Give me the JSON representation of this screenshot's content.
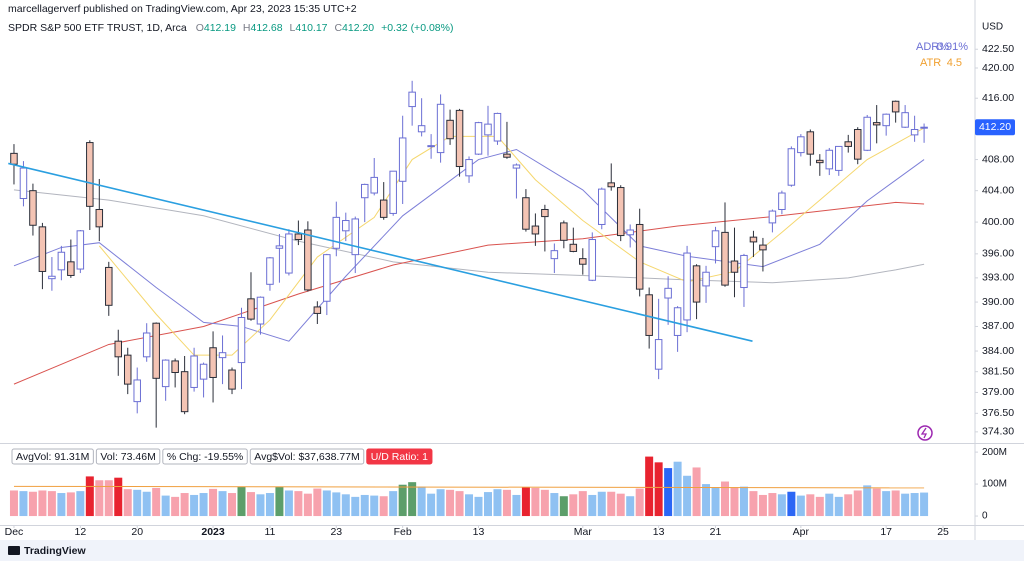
{
  "header": {
    "publisher": "marcellagerverf published on TradingView.com, Apr 23, 2023 15:35 UTC+2",
    "symbol": "SPDR S&P 500 ETF TRUST, 1D, Arca",
    "ohlc": [
      {
        "label": "O",
        "value": "412.19"
      },
      {
        "label": "H",
        "value": "412.68"
      },
      {
        "label": "L",
        "value": "410.17"
      },
      {
        "label": "C",
        "value": "412.20"
      }
    ],
    "change": "+0.32 (+0.08%)",
    "currency": "USD"
  },
  "indicators": {
    "adr_label": "ADR%",
    "adr_value": "0.91%",
    "atr_label": "ATR",
    "atr_value": "4.5"
  },
  "status_bar": [
    "AvgVol: 91.31M",
    "Vol: 73.46M",
    "% Chg: -19.55%",
    "Avg$Vol: $37,638.77M",
    "U/D Ratio: 1"
  ],
  "footer": {
    "brand": "TradingView"
  },
  "chart_data": {
    "type": "candlestick",
    "open": [
      408.8,
      403.0,
      404.0,
      399.4,
      392.9,
      394.0,
      395.0,
      394.1,
      410.2,
      401.6,
      394.3,
      385.2,
      383.5,
      377.9,
      383.3,
      387.4,
      379.7,
      382.8,
      381.5,
      379.6,
      380.6,
      384.4,
      383.2,
      381.7,
      382.6,
      390.4,
      387.3,
      392.2,
      396.7,
      393.6,
      398.5,
      399.0,
      389.4,
      390.1,
      396.7,
      398.9,
      395.9,
      403.1,
      403.7,
      402.8,
      401.1,
      405.2,
      414.9,
      411.6,
      409.8,
      408.9,
      413.1,
      414.4,
      405.9,
      408.7,
      411.2,
      410.4,
      408.7,
      406.9,
      403.1,
      399.5,
      401.6,
      395.4,
      399.9,
      397.2,
      395.4,
      392.7,
      399.7,
      405.0,
      404.4,
      398.4,
      399.7,
      390.9,
      381.8,
      390.5,
      385.9,
      387.8,
      394.5,
      392.0,
      396.9,
      398.7,
      395.1,
      391.8,
      398.1,
      397.1,
      399.9,
      401.6,
      404.7,
      408.9,
      411.6,
      407.9,
      406.8,
      406.6,
      410.3,
      411.9,
      409.2,
      412.8,
      412.4,
      415.6,
      412.2,
      411.2,
      412.19
    ],
    "high": [
      410.0,
      407.8,
      404.9,
      399.9,
      395.6,
      397.0,
      397.8,
      399.0,
      410.5,
      405.5,
      395.0,
      386.6,
      384.4,
      382.0,
      387.4,
      387.5,
      383.0,
      383.1,
      383.4,
      384.4,
      382.6,
      386.4,
      385.9,
      382.0,
      389.3,
      393.7,
      390.7,
      395.6,
      398.5,
      399.1,
      400.2,
      400.1,
      390.1,
      396.0,
      402.6,
      401.2,
      400.7,
      404.9,
      408.2,
      405.1,
      406.5,
      413.7,
      418.3,
      416.0,
      411.3,
      416.5,
      414.5,
      414.6,
      408.4,
      412.9,
      415.0,
      414.1,
      412.9,
      407.5,
      404.2,
      401.1,
      402.2,
      397.3,
      400.2,
      399.3,
      396.7,
      398.7,
      404.4,
      407.5,
      404.7,
      399.7,
      401.7,
      391.8,
      390.4,
      393.2,
      389.5,
      397.0,
      394.7,
      394.5,
      399.4,
      402.5,
      399.3,
      396.0,
      398.9,
      398.0,
      401.6,
      404.0,
      409.7,
      411.3,
      411.9,
      408.7,
      409.5,
      409.7,
      411.2,
      412.2,
      413.8,
      415.1,
      414.0,
      415.7,
      415.1,
      413.7,
      412.68
    ],
    "low": [
      404.8,
      402.0,
      398.3,
      391.6,
      391.4,
      392.7,
      393.0,
      393.6,
      399.0,
      397.6,
      388.3,
      381.0,
      378.8,
      376.5,
      382.7,
      374.8,
      378.0,
      379.6,
      376.4,
      379.1,
      378.4,
      377.8,
      380.0,
      378.8,
      379.4,
      387.7,
      386.0,
      391.4,
      392.4,
      393.3,
      397.1,
      391.3,
      387.3,
      388.4,
      395.7,
      397.6,
      393.6,
      400.0,
      403.4,
      400.3,
      400.8,
      402.3,
      412.4,
      411.0,
      408.1,
      407.6,
      409.9,
      405.8,
      405.0,
      408.6,
      408.5,
      409.9,
      408.1,
      403.0,
      398.8,
      397.0,
      396.3,
      393.6,
      396.7,
      396.2,
      393.4,
      392.6,
      399.1,
      404.0,
      397.6,
      396.8,
      390.7,
      384.3,
      380.6,
      387.2,
      383.9,
      386.3,
      387.9,
      389.9,
      394.8,
      391.9,
      390.6,
      389.4,
      395.6,
      393.8,
      398.7,
      401.0,
      404.5,
      408.4,
      407.2,
      405.9,
      406.0,
      405.9,
      408.9,
      407.4,
      409.1,
      410.1,
      411.1,
      412.8,
      412.1,
      410.3,
      410.17
    ],
    "close": [
      407.4,
      406.9,
      399.6,
      393.8,
      393.2,
      396.2,
      393.3,
      398.9,
      402.0,
      399.4,
      389.6,
      383.3,
      380.0,
      380.5,
      386.2,
      380.7,
      382.9,
      381.4,
      376.7,
      383.4,
      382.4,
      380.8,
      383.8,
      379.4,
      388.1,
      387.9,
      390.6,
      395.5,
      397.0,
      398.5,
      397.8,
      391.5,
      388.6,
      395.9,
      400.6,
      400.2,
      400.4,
      404.8,
      405.7,
      400.6,
      406.5,
      410.8,
      416.8,
      412.4,
      409.8,
      415.2,
      410.7,
      407.1,
      408.0,
      412.8,
      412.6,
      414.0,
      408.3,
      407.3,
      399.1,
      398.5,
      400.7,
      396.4,
      397.7,
      396.3,
      394.7,
      397.8,
      404.2,
      404.5,
      398.3,
      399.0,
      391.6,
      385.9,
      385.4,
      391.7,
      389.3,
      396.1,
      390.0,
      393.7,
      398.9,
      392.1,
      393.7,
      395.8,
      397.5,
      396.5,
      401.4,
      403.7,
      409.4,
      410.95,
      408.7,
      407.6,
      409.2,
      409.7,
      409.7,
      408.05,
      413.5,
      412.5,
      413.9,
      414.2,
      414.1,
      411.9,
      412.2
    ],
    "up_color": "#6b6fd4",
    "down_color": "#f4c4b4",
    "log": true,
    "grid": false,
    "xlim": [
      -0.63,
      101.37
    ],
    "ylim": [
      373.1,
      426.7
    ],
    "yticks": [
      {
        "value": 422.5,
        "label": "422.50"
      },
      {
        "value": 420,
        "label": "420.00"
      },
      {
        "value": 416,
        "label": "416.00"
      },
      {
        "value": 408,
        "label": "408.00"
      },
      {
        "value": 404,
        "label": "404.00"
      },
      {
        "value": 400,
        "label": "400.00"
      },
      {
        "value": 396,
        "label": "396.00"
      },
      {
        "value": 393,
        "label": "393.00"
      },
      {
        "value": 390,
        "label": "390.00"
      },
      {
        "value": 387,
        "label": "387.00"
      },
      {
        "value": 384,
        "label": "384.00"
      },
      {
        "value": 381.5,
        "label": "381.50"
      },
      {
        "value": 379,
        "label": "379.00"
      },
      {
        "value": 376.5,
        "label": "376.50"
      },
      {
        "value": 374.3,
        "label": "374.30"
      }
    ],
    "price_label": {
      "value": 412.2,
      "label": "412.20",
      "color": "#2962ff"
    },
    "xticks": [
      {
        "value": 0,
        "label": "Dec"
      },
      {
        "value": 7,
        "label": "12"
      },
      {
        "value": 13,
        "label": "20"
      },
      {
        "value": 21,
        "label": "2023"
      },
      {
        "value": 27,
        "label": "11"
      },
      {
        "value": 34,
        "label": "23"
      },
      {
        "value": 41,
        "label": "Feb"
      },
      {
        "value": 49,
        "label": "13"
      },
      {
        "value": 60,
        "label": "Mar"
      },
      {
        "value": 68,
        "label": "13"
      },
      {
        "value": 74,
        "label": "21"
      },
      {
        "value": 83,
        "label": "Apr"
      },
      {
        "value": 92,
        "label": "17"
      },
      {
        "value": 98,
        "label": "25"
      }
    ],
    "moving_averages": [
      {
        "color": "#b2b5be",
        "x": [
          0,
          10,
          20,
          30,
          40,
          50,
          60,
          70,
          80,
          88,
          93,
          96
        ],
        "values": [
          404.1,
          402.8,
          400.8,
          397.6,
          395.0,
          393.7,
          393.3,
          392.8,
          392.4,
          393.0,
          394.0,
          394.7
        ]
      },
      {
        "color": "#d9534f",
        "x": [
          0,
          10,
          20,
          30,
          40,
          50,
          60,
          70,
          80,
          88,
          93,
          96
        ],
        "values": [
          380.0,
          384.8,
          387.0,
          391.0,
          394.6,
          397.1,
          397.9,
          399.5,
          400.7,
          401.8,
          402.5,
          402.3
        ]
      },
      {
        "color": "#7d7fd8",
        "x": [
          0,
          5,
          9,
          15,
          20,
          24,
          29,
          35,
          41,
          49,
          53,
          60,
          66,
          71,
          79,
          85,
          90,
          96
        ],
        "values": [
          394.5,
          396.8,
          397.4,
          391.8,
          387.5,
          387.0,
          385.2,
          393.2,
          400.8,
          408.0,
          409.3,
          404.1,
          397.0,
          395.7,
          394.4,
          397.2,
          402.7,
          408.0
        ]
      },
      {
        "color": "#f5d76e",
        "x": [
          9,
          15,
          19,
          23,
          27,
          32,
          38,
          42,
          46,
          51,
          55,
          60,
          66,
          71,
          76,
          81,
          85,
          90,
          96
        ],
        "values": [
          397.0,
          388.5,
          383.5,
          383.5,
          387.8,
          395.6,
          400.6,
          408.0,
          411.0,
          411.0,
          405.4,
          400.2,
          395.0,
          392.5,
          393.8,
          398.7,
          402.8,
          408.0,
          412.1
        ]
      }
    ],
    "trendline": {
      "color": "#2a9fe0",
      "x": [
        -0.6,
        77.9
      ],
      "values": [
        407.5,
        385.2
      ]
    },
    "volume": {
      "values": [
        80,
        78,
        76,
        80,
        78,
        72,
        74,
        78,
        124,
        112,
        112,
        120,
        84,
        82,
        76,
        88,
        64,
        60,
        72,
        66,
        72,
        85,
        78,
        72,
        92,
        75,
        68,
        72,
        92,
        80,
        78,
        70,
        86,
        80,
        74,
        68,
        60,
        66,
        64,
        62,
        78,
        98,
        106,
        92,
        70,
        84,
        82,
        78,
        68,
        60,
        75,
        84,
        82,
        66,
        90,
        88,
        82,
        72,
        62,
        68,
        78,
        66,
        76,
        76,
        70,
        62,
        86,
        186,
        168,
        150,
        170,
        126,
        152,
        100,
        90,
        108,
        90,
        92,
        78,
        66,
        72,
        68,
        76,
        64,
        68,
        60,
        70,
        60,
        68,
        80,
        96,
        86,
        78,
        80,
        70,
        72,
        73.46
      ],
      "colors": [
        "#f7a2ad",
        "#8fc1f2",
        "#f7a2ad",
        "#f7a2ad",
        "#f7a2ad",
        "#8fc1f2",
        "#f7a2ad",
        "#8fc1f2",
        "#e8232f",
        "#f7a2ad",
        "#f7a2ad",
        "#e8232f",
        "#f7a2ad",
        "#8fc1f2",
        "#8fc1f2",
        "#f7a2ad",
        "#8fc1f2",
        "#f7a2ad",
        "#f7a2ad",
        "#8fc1f2",
        "#8fc1f2",
        "#f7a2ad",
        "#8fc1f2",
        "#f7a2ad",
        "#5c9e6a",
        "#f7a2ad",
        "#8fc1f2",
        "#8fc1f2",
        "#5c9e6a",
        "#8fc1f2",
        "#f7a2ad",
        "#f7a2ad",
        "#f7a2ad",
        "#8fc1f2",
        "#8fc1f2",
        "#8fc1f2",
        "#8fc1f2",
        "#8fc1f2",
        "#8fc1f2",
        "#f7a2ad",
        "#8fc1f2",
        "#5c9e6a",
        "#5c9e6a",
        "#8fc1f2",
        "#8fc1f2",
        "#8fc1f2",
        "#f7a2ad",
        "#f7a2ad",
        "#8fc1f2",
        "#8fc1f2",
        "#8fc1f2",
        "#8fc1f2",
        "#f7a2ad",
        "#8fc1f2",
        "#e8232f",
        "#f7a2ad",
        "#f7a2ad",
        "#8fc1f2",
        "#5c9e6a",
        "#f7a2ad",
        "#f7a2ad",
        "#8fc1f2",
        "#8fc1f2",
        "#f7a2ad",
        "#f7a2ad",
        "#8fc1f2",
        "#f7a2ad",
        "#e8232f",
        "#e8232f",
        "#2b66f5",
        "#8fc1f2",
        "#8fc1f2",
        "#f7a2ad",
        "#8fc1f2",
        "#8fc1f2",
        "#f7a2ad",
        "#f7a2ad",
        "#8fc1f2",
        "#f7a2ad",
        "#f7a2ad",
        "#f7a2ad",
        "#8fc1f2",
        "#2b66f5",
        "#8fc1f2",
        "#f7a2ad",
        "#f7a2ad",
        "#8fc1f2",
        "#8fc1f2",
        "#f7a2ad",
        "#f7a2ad",
        "#8fc1f2",
        "#f7a2ad",
        "#8fc1f2",
        "#f7a2ad",
        "#8fc1f2",
        "#8fc1f2",
        "#8fc1f2"
      ],
      "ylim": [
        -28,
        216
      ],
      "yticks": [
        {
          "value": 200,
          "label": "200M"
        },
        {
          "value": 100,
          "label": "100M"
        },
        0
      ],
      "average": {
        "color": "#f0a040",
        "x": [
          0,
          96
        ],
        "values": [
          93,
          88
        ]
      }
    }
  }
}
